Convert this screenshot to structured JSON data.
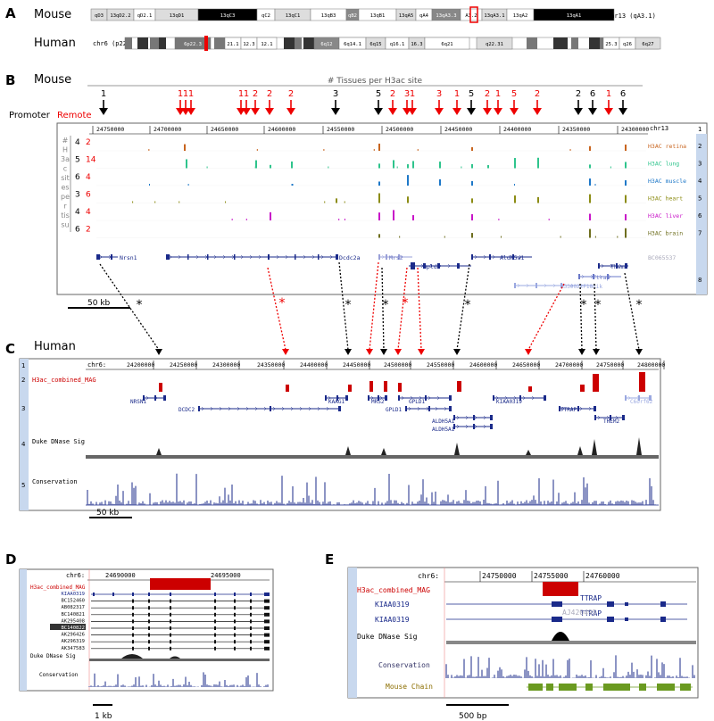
{
  "panels": {
    "A": {
      "letter": "A",
      "mouse_label": "Mouse",
      "human_label": "Human",
      "mouse_bands": [
        "qD3",
        "13qD2.2",
        "qD2.1",
        "13qD1",
        "13qC3",
        "qC2",
        "13qC1",
        "13qB3",
        "qB2",
        "13qB1",
        "13qA5",
        "qA4",
        "13qA3.3",
        "A3.2",
        "13qA3.1",
        "13qA2",
        "13qA1"
      ],
      "mouse_chr_label": "chr13 (qA3.1)",
      "human_chr_label": "chr6 (p22.2)",
      "human_bands": [
        "6p22.3",
        "21.1",
        "12.3",
        "12.1",
        "6q12",
        "6q14.1",
        "6q15",
        "q16.1",
        "16.3",
        "6q21",
        "q22.31",
        "25.3",
        "q26",
        "6q27"
      ]
    },
    "B": {
      "letter": "B",
      "species": "Mouse",
      "header": "# Tissues per H3ac site",
      "legend_promoter": "Promoter",
      "legend_remote": "Remote",
      "arrow_labels": [
        {
          "t": "1",
          "c": "black"
        },
        {
          "t": "1",
          "c": "red"
        },
        {
          "t": "1",
          "c": "red"
        },
        {
          "t": "1",
          "c": "red"
        },
        {
          "t": "1",
          "c": "red"
        },
        {
          "t": "1",
          "c": "red"
        },
        {
          "t": "2",
          "c": "red"
        },
        {
          "t": "2",
          "c": "red"
        },
        {
          "t": "2",
          "c": "red"
        },
        {
          "t": "3",
          "c": "black"
        },
        {
          "t": "5",
          "c": "black"
        },
        {
          "t": "2",
          "c": "red"
        },
        {
          "t": "3",
          "c": "red"
        },
        {
          "t": "1",
          "c": "red"
        },
        {
          "t": "3",
          "c": "red"
        },
        {
          "t": "1",
          "c": "red"
        },
        {
          "t": "5",
          "c": "black"
        },
        {
          "t": "2",
          "c": "red"
        },
        {
          "t": "1",
          "c": "red"
        },
        {
          "t": "5",
          "c": "red"
        },
        {
          "t": "2",
          "c": "red"
        },
        {
          "t": "2",
          "c": "black"
        },
        {
          "t": "6",
          "c": "black"
        },
        {
          "t": "1",
          "c": "red"
        },
        {
          "t": "6",
          "c": "black"
        }
      ],
      "coords": [
        "24750000",
        "24700000",
        "24650000",
        "24600000",
        "24550000",
        "24500000",
        "24450000",
        "24400000",
        "24350000",
        "24300000"
      ],
      "chr": "chr13",
      "side_label": [
        "#",
        "H",
        "3a",
        "c",
        "sit",
        "es",
        "pe",
        "r",
        "tis",
        "su"
      ],
      "counts": [
        {
          "black": "4",
          "red": "2"
        },
        {
          "black": "5",
          "red": "14"
        },
        {
          "black": "6",
          "red": "4"
        },
        {
          "black": "3",
          "red": "6"
        },
        {
          "black": "4",
          "red": "4"
        },
        {
          "black": "6",
          "red": "2"
        }
      ],
      "tracks": [
        {
          "name": "H3AC retina",
          "color": "#c8641e",
          "num": "2"
        },
        {
          "name": "H3AC lung",
          "color": "#2ec48c",
          "num": "3"
        },
        {
          "name": "H3AC muscle",
          "color": "#1e78c8",
          "num": "4"
        },
        {
          "name": "H3AC heart",
          "color": "#8c8c14",
          "num": "5"
        },
        {
          "name": "H3AC liver",
          "color": "#c814c8",
          "num": "6"
        },
        {
          "name": "H3AC brain",
          "color": "#6e6e1e",
          "num": "7"
        }
      ],
      "genes": [
        "Nrsn1",
        "Dcdc2a",
        "Mrs2",
        "Gpld1",
        "Aldh5a1",
        "Them2",
        "Ttrap",
        "BC065537",
        "A330022F18Rik",
        "Kiaa0319"
      ],
      "scale": "50 kb"
    },
    "C": {
      "letter": "C",
      "species": "Human",
      "chr": "chr6:",
      "coords": [
        "24200000",
        "24250000",
        "24300000",
        "24350000",
        "24400000",
        "24450000",
        "24500000",
        "24550000",
        "24600000",
        "24650000",
        "24700000",
        "24750000",
        "24800000"
      ],
      "track_labels": [
        "H3ac_combined_MAG",
        "Duke DNase Sig",
        "Conservation"
      ],
      "track_nums": [
        "1",
        "2",
        "3",
        "4",
        "5"
      ],
      "genes": [
        "NRSN1",
        "DCDC2",
        "KAAG1",
        "MRS2",
        "GPLD1",
        "GPLD1",
        "ALDH5A1",
        "ALDH5A1",
        "KIAA0319",
        "TTRAP",
        "THEM2",
        "C6orf62"
      ],
      "scale": "50 kb"
    },
    "D": {
      "letter": "D",
      "chr": "chr6:",
      "coords": [
        "24690000",
        "24695000"
      ],
      "track_labels": [
        "H3ac_combined_MAG",
        "Duke DNase Sig",
        "Conservation"
      ],
      "transcripts": [
        "KIAA0319",
        "BC152460",
        "AB082317",
        "BC140821",
        "AK295408",
        "BC140822",
        "AK296426",
        "AK296319",
        "AK347583"
      ],
      "scale": "1 kb"
    },
    "E": {
      "letter": "E",
      "chr": "chr6:",
      "coords": [
        "24750000",
        "24755000",
        "24760000"
      ],
      "track_labels": [
        "H3ac_combined_MAG",
        "Duke DNase Sig",
        "Conservation",
        "Mouse Chain"
      ],
      "genes": [
        "KIAA0319",
        "KIAA0319",
        "TTRAP",
        "TTRAP",
        "AJ420495"
      ],
      "scale": "500 bp"
    }
  }
}
